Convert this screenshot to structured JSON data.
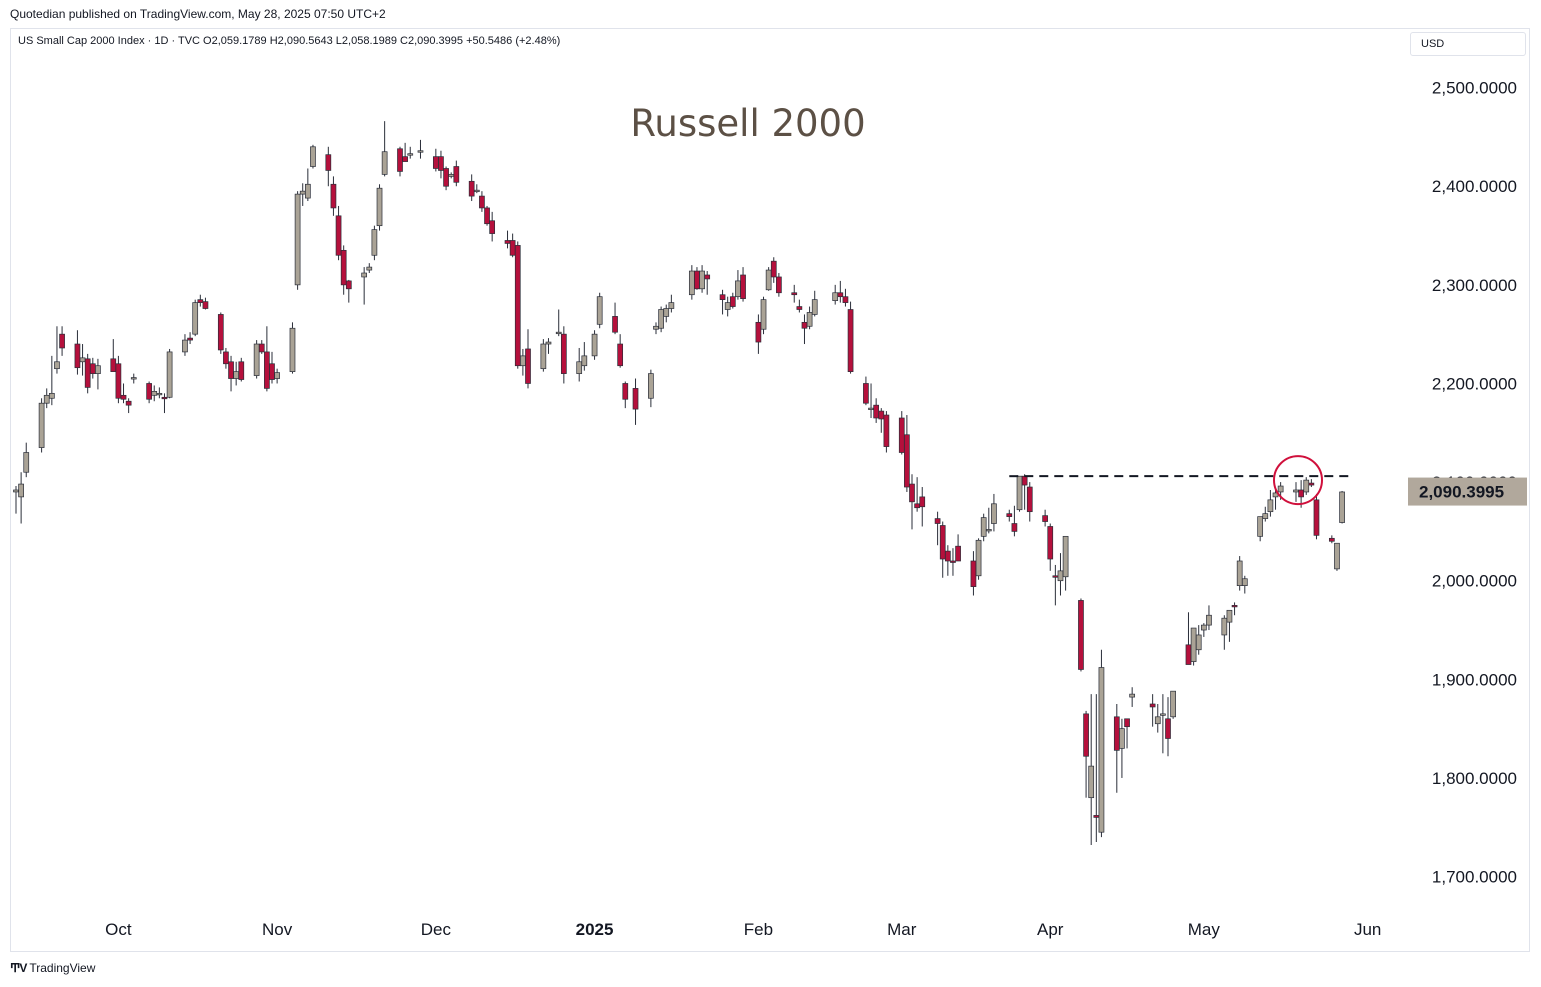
{
  "header": {
    "publisher_line": "Quotedian published on TradingView.com, May 28, 2025 07:50 UTC+2"
  },
  "legend": {
    "symbol": "US Small Cap 2000 Index · 1D · TVC",
    "open": "O2,059.1789",
    "high": "H2,090.5643",
    "low": "L2,058.1989",
    "close": "C2,090.3995",
    "change": "+50.5486 (+2.48%)"
  },
  "currency_label": "USD",
  "chart_title": "Russell 2000",
  "last_price_label": "2,090.3995",
  "colors": {
    "up_candle": "#aaa396",
    "down_candle": "#b5103c",
    "wick": "#2a2e39",
    "title": "#5c5045",
    "circle": "#d0103c",
    "price_tag_bg": "#b1a89c"
  },
  "footer": {
    "brand": "TradingView",
    "logo": "tradingview-logo"
  },
  "chart_data": {
    "type": "candlestick",
    "title": "Russell 2000",
    "ylim": [
      1658,
      2528
    ],
    "y_ticks": [
      {
        "value": 2500,
        "label": "2,500.0000"
      },
      {
        "value": 2400,
        "label": "2,400.0000"
      },
      {
        "value": 2300,
        "label": "2,300.0000"
      },
      {
        "value": 2200,
        "label": "2,200.0000"
      },
      {
        "value": 2100,
        "label": "2,100.0000"
      },
      {
        "value": 2000,
        "label": "2,000.0000"
      },
      {
        "value": 1900,
        "label": "1,900.0000"
      },
      {
        "value": 1800,
        "label": "1,800.0000"
      },
      {
        "value": 1700,
        "label": "1,700.0000"
      }
    ],
    "x_ticks": [
      {
        "date": "2024-10-01",
        "label": "Oct",
        "bold": false
      },
      {
        "date": "2024-11-01",
        "label": "Nov",
        "bold": false
      },
      {
        "date": "2024-12-02",
        "label": "Dec",
        "bold": false
      },
      {
        "date": "2025-01-02",
        "label": "2025",
        "bold": true
      },
      {
        "date": "2025-02-03",
        "label": "Feb",
        "bold": false
      },
      {
        "date": "2025-03-03",
        "label": "Mar",
        "bold": false
      },
      {
        "date": "2025-04-01",
        "label": "Apr",
        "bold": false
      },
      {
        "date": "2025-05-01",
        "label": "May",
        "bold": false
      },
      {
        "date": "2025-06-02",
        "label": "Jun",
        "bold": false
      }
    ],
    "resistance_level": 2106,
    "resistance_start": "2025-03-24",
    "resistance_end": "2025-05-27",
    "highlight": {
      "date": "2025-05-19",
      "price": 2100
    },
    "last_price": 2090.3995,
    "candles": [
      [
        "2024-09-11",
        2090,
        2096,
        2068,
        2092
      ],
      [
        "2024-09-12",
        2085,
        2110,
        2058,
        2098
      ],
      [
        "2024-09-13",
        2110,
        2140,
        2105,
        2130
      ],
      [
        "2024-09-16",
        2135,
        2185,
        2130,
        2180
      ],
      [
        "2024-09-17",
        2180,
        2195,
        2175,
        2188
      ],
      [
        "2024-09-18",
        2185,
        2228,
        2178,
        2190
      ],
      [
        "2024-09-19",
        2215,
        2258,
        2210,
        2222
      ],
      [
        "2024-09-20",
        2250,
        2258,
        2228,
        2236
      ],
      [
        "2024-09-23",
        2240,
        2254,
        2209,
        2216
      ],
      [
        "2024-09-24",
        2222,
        2240,
        2208,
        2226
      ],
      [
        "2024-09-25",
        2225,
        2230,
        2190,
        2196
      ],
      [
        "2024-09-26",
        2220,
        2226,
        2205,
        2210
      ],
      [
        "2024-09-27",
        2210,
        2225,
        2194,
        2218
      ],
      [
        "2024-09-30",
        2225,
        2245,
        2212,
        2212
      ],
      [
        "2024-10-01",
        2220,
        2228,
        2180,
        2185
      ],
      [
        "2024-10-02",
        2188,
        2200,
        2180,
        2184
      ],
      [
        "2024-10-03",
        2182,
        2185,
        2170,
        2178
      ],
      [
        "2024-10-04",
        2205,
        2210,
        2200,
        2206
      ],
      [
        "2024-10-07",
        2200,
        2202,
        2180,
        2184
      ],
      [
        "2024-10-08",
        2188,
        2198,
        2182,
        2192
      ],
      [
        "2024-10-09",
        2190,
        2196,
        2185,
        2190
      ],
      [
        "2024-10-10",
        2186,
        2190,
        2170,
        2185
      ],
      [
        "2024-10-11",
        2186,
        2235,
        2185,
        2232
      ],
      [
        "2024-10-14",
        2232,
        2250,
        2228,
        2244
      ],
      [
        "2024-10-15",
        2246,
        2252,
        2240,
        2244
      ],
      [
        "2024-10-16",
        2250,
        2285,
        2248,
        2282
      ],
      [
        "2024-10-17",
        2285,
        2290,
        2278,
        2282
      ],
      [
        "2024-10-18",
        2283,
        2287,
        2275,
        2276
      ],
      [
        "2024-10-21",
        2270,
        2272,
        2230,
        2234
      ],
      [
        "2024-10-22",
        2232,
        2236,
        2215,
        2220
      ],
      [
        "2024-10-23",
        2222,
        2228,
        2192,
        2205
      ],
      [
        "2024-10-24",
        2205,
        2222,
        2198,
        2212
      ],
      [
        "2024-10-25",
        2222,
        2226,
        2202,
        2204
      ],
      [
        "2024-10-28",
        2208,
        2244,
        2205,
        2240
      ],
      [
        "2024-10-29",
        2240,
        2244,
        2230,
        2232
      ],
      [
        "2024-10-30",
        2232,
        2258,
        2192,
        2195
      ],
      [
        "2024-10-31",
        2220,
        2232,
        2200,
        2204
      ],
      [
        "2024-11-01",
        2205,
        2215,
        2200,
        2211
      ],
      [
        "2024-11-04",
        2212,
        2262,
        2210,
        2256
      ],
      [
        "2024-11-05",
        2300,
        2395,
        2295,
        2392
      ],
      [
        "2024-11-06",
        2392,
        2403,
        2380,
        2395
      ],
      [
        "2024-11-07",
        2388,
        2418,
        2385,
        2402
      ],
      [
        "2024-11-08",
        2420,
        2442,
        2418,
        2440
      ],
      [
        "2024-11-11",
        2432,
        2440,
        2400,
        2416
      ],
      [
        "2024-11-12",
        2402,
        2410,
        2370,
        2378
      ],
      [
        "2024-11-13",
        2370,
        2380,
        2325,
        2330
      ],
      [
        "2024-11-14",
        2335,
        2340,
        2290,
        2300
      ],
      [
        "2024-11-15",
        2304,
        2305,
        2282,
        2296
      ],
      [
        "2024-11-18",
        2308,
        2318,
        2280,
        2312
      ],
      [
        "2024-11-19",
        2315,
        2322,
        2312,
        2318
      ],
      [
        "2024-11-20",
        2330,
        2360,
        2325,
        2356
      ],
      [
        "2024-11-21",
        2360,
        2402,
        2355,
        2398
      ],
      [
        "2024-11-22",
        2412,
        2466,
        2410,
        2435
      ],
      [
        "2024-11-25",
        2438,
        2440,
        2410,
        2415
      ],
      [
        "2024-11-26",
        2430,
        2444,
        2425,
        2425
      ],
      [
        "2024-11-27",
        2432,
        2440,
        2428,
        2433
      ],
      [
        "2024-11-29",
        2436,
        2447,
        2428,
        2436
      ],
      [
        "2024-12-02",
        2430,
        2438,
        2415,
        2418
      ],
      [
        "2024-12-03",
        2430,
        2436,
        2408,
        2416
      ],
      [
        "2024-12-04",
        2418,
        2420,
        2396,
        2400
      ],
      [
        "2024-12-05",
        2410,
        2414,
        2408,
        2412
      ],
      [
        "2024-12-06",
        2420,
        2426,
        2400,
        2404
      ],
      [
        "2024-12-09",
        2405,
        2412,
        2385,
        2390
      ],
      [
        "2024-12-10",
        2396,
        2402,
        2393,
        2396
      ],
      [
        "2024-12-11",
        2390,
        2395,
        2374,
        2378
      ],
      [
        "2024-12-12",
        2378,
        2380,
        2360,
        2362
      ],
      [
        "2024-12-13",
        2365,
        2374,
        2344,
        2352
      ],
      [
        "2024-12-16",
        2345,
        2355,
        2337,
        2342
      ],
      [
        "2024-12-17",
        2345,
        2352,
        2328,
        2330
      ],
      [
        "2024-12-18",
        2340,
        2344,
        2215,
        2218
      ],
      [
        "2024-12-19",
        2218,
        2235,
        2208,
        2228
      ],
      [
        "2024-12-20",
        2235,
        2255,
        2195,
        2200
      ],
      [
        "2024-12-23",
        2215,
        2245,
        2212,
        2240
      ],
      [
        "2024-12-24",
        2240,
        2246,
        2230,
        2242
      ],
      [
        "2024-12-26",
        2252,
        2275,
        2248,
        2252
      ],
      [
        "2024-12-27",
        2250,
        2258,
        2200,
        2210
      ],
      [
        "2024-12-30",
        2210,
        2236,
        2202,
        2222
      ],
      [
        "2024-12-31",
        2218,
        2242,
        2213,
        2228
      ],
      [
        "2025-01-02",
        2228,
        2254,
        2224,
        2250
      ],
      [
        "2025-01-03",
        2260,
        2292,
        2256,
        2288
      ],
      [
        "2025-01-06",
        2268,
        2282,
        2250,
        2252
      ],
      [
        "2025-01-07",
        2240,
        2250,
        2216,
        2218
      ],
      [
        "2025-01-08",
        2200,
        2202,
        2175,
        2184
      ],
      [
        "2025-01-10",
        2195,
        2205,
        2158,
        2174
      ],
      [
        "2025-01-13",
        2185,
        2214,
        2176,
        2210
      ],
      [
        "2025-01-14",
        2255,
        2262,
        2250,
        2258
      ],
      [
        "2025-01-15",
        2256,
        2278,
        2252,
        2275
      ],
      [
        "2025-01-16",
        2268,
        2280,
        2262,
        2276
      ],
      [
        "2025-01-17",
        2276,
        2290,
        2272,
        2282
      ],
      [
        "2025-01-21",
        2290,
        2320,
        2285,
        2314
      ],
      [
        "2025-01-22",
        2314,
        2318,
        2295,
        2296
      ],
      [
        "2025-01-23",
        2296,
        2320,
        2292,
        2314
      ],
      [
        "2025-01-24",
        2310,
        2314,
        2290,
        2306
      ],
      [
        "2025-01-27",
        2290,
        2295,
        2270,
        2285
      ],
      [
        "2025-01-28",
        2275,
        2288,
        2268,
        2282
      ],
      [
        "2025-01-29",
        2288,
        2292,
        2276,
        2278
      ],
      [
        "2025-01-30",
        2288,
        2315,
        2285,
        2304
      ],
      [
        "2025-01-31",
        2310,
        2318,
        2283,
        2286
      ],
      [
        "2025-02-03",
        2262,
        2270,
        2230,
        2242
      ],
      [
        "2025-02-04",
        2255,
        2288,
        2250,
        2285
      ],
      [
        "2025-02-05",
        2295,
        2318,
        2294,
        2315
      ],
      [
        "2025-02-06",
        2324,
        2328,
        2302,
        2308
      ],
      [
        "2025-02-07",
        2308,
        2312,
        2288,
        2292
      ],
      [
        "2025-02-10",
        2292,
        2300,
        2282,
        2290
      ],
      [
        "2025-02-11",
        2278,
        2285,
        2272,
        2275
      ],
      [
        "2025-02-12",
        2262,
        2270,
        2240,
        2256
      ],
      [
        "2025-02-13",
        2258,
        2278,
        2255,
        2272
      ],
      [
        "2025-02-14",
        2270,
        2294,
        2268,
        2285
      ],
      [
        "2025-02-18",
        2284,
        2300,
        2280,
        2292
      ],
      [
        "2025-02-19",
        2292,
        2304,
        2282,
        2288
      ],
      [
        "2025-02-20",
        2288,
        2296,
        2278,
        2282
      ],
      [
        "2025-02-21",
        2275,
        2283,
        2210,
        2212
      ],
      [
        "2025-02-24",
        2200,
        2207,
        2178,
        2180
      ],
      [
        "2025-02-25",
        2175,
        2200,
        2165,
        2175
      ],
      [
        "2025-02-26",
        2178,
        2185,
        2160,
        2165
      ],
      [
        "2025-02-27",
        2172,
        2175,
        2150,
        2164
      ],
      [
        "2025-02-28",
        2168,
        2172,
        2130,
        2136
      ],
      [
        "2025-03-03",
        2165,
        2172,
        2128,
        2130
      ],
      [
        "2025-03-04",
        2148,
        2168,
        2090,
        2095
      ],
      [
        "2025-03-05",
        2098,
        2108,
        2052,
        2080
      ],
      [
        "2025-03-06",
        2078,
        2105,
        2070,
        2074
      ],
      [
        "2025-03-07",
        2085,
        2095,
        2055,
        2075
      ],
      [
        "2025-03-10",
        2063,
        2070,
        2036,
        2058
      ],
      [
        "2025-03-11",
        2056,
        2060,
        2003,
        2022
      ],
      [
        "2025-03-12",
        2030,
        2036,
        2005,
        2020
      ],
      [
        "2025-03-13",
        2020,
        2033,
        2005,
        2019
      ],
      [
        "2025-03-14",
        2035,
        2047,
        2026,
        2020
      ],
      [
        "2025-03-17",
        2020,
        2030,
        1985,
        1994
      ],
      [
        "2025-03-18",
        2005,
        2043,
        2001,
        2041
      ],
      [
        "2025-03-19",
        2045,
        2068,
        2040,
        2064
      ],
      [
        "2025-03-20",
        2052,
        2074,
        2048,
        2052
      ],
      [
        "2025-03-21",
        2058,
        2088,
        2050,
        2078
      ],
      [
        "2025-03-24",
        2068,
        2072,
        2060,
        2065
      ],
      [
        "2025-03-25",
        2058,
        2076,
        2045,
        2050
      ],
      [
        "2025-03-26",
        2072,
        2106,
        2070,
        2106
      ],
      [
        "2025-03-27",
        2106,
        2108,
        2072,
        2097
      ],
      [
        "2025-03-28",
        2095,
        2100,
        2060,
        2070
      ],
      [
        "2025-03-31",
        2066,
        2072,
        2055,
        2060
      ],
      [
        "2025-04-01",
        2055,
        2058,
        2010,
        2022
      ],
      [
        "2025-04-02",
        2005,
        2016,
        1975,
        2004
      ],
      [
        "2025-04-03",
        2000,
        2028,
        1985,
        2010
      ],
      [
        "2025-04-04",
        2004,
        2045,
        1990,
        2045
      ],
      [
        "2025-04-07",
        1980,
        1982,
        1908,
        1910
      ],
      [
        "2025-04-08",
        1865,
        1868,
        1780,
        1822
      ],
      [
        "2025-04-09",
        1780,
        1885,
        1732,
        1812
      ],
      [
        "2025-04-10",
        1762,
        1885,
        1735,
        1760
      ],
      [
        "2025-04-11",
        1745,
        1930,
        1740,
        1912
      ],
      [
        "2025-04-14",
        1862,
        1875,
        1785,
        1828
      ],
      [
        "2025-04-15",
        1830,
        1860,
        1800,
        1850
      ],
      [
        "2025-04-16",
        1860,
        1860,
        1830,
        1852
      ],
      [
        "2025-04-17",
        1882,
        1892,
        1872,
        1885
      ],
      [
        "2025-04-21",
        1875,
        1885,
        1852,
        1872
      ],
      [
        "2025-04-22",
        1855,
        1875,
        1846,
        1862
      ],
      [
        "2025-04-23",
        1865,
        1885,
        1825,
        1865
      ],
      [
        "2025-04-24",
        1860,
        1882,
        1822,
        1840
      ],
      [
        "2025-04-25",
        1862,
        1888,
        1860,
        1888
      ],
      [
        "2025-04-28",
        1935,
        1968,
        1920,
        1915
      ],
      [
        "2025-04-29",
        1918,
        1948,
        1914,
        1952
      ],
      [
        "2025-04-30",
        1930,
        1955,
        1925,
        1945
      ],
      [
        "2025-05-01",
        1950,
        1957,
        1943,
        1955
      ],
      [
        "2025-05-02",
        1955,
        1975,
        1950,
        1965
      ],
      [
        "2025-05-05",
        1945,
        1965,
        1930,
        1962
      ],
      [
        "2025-05-06",
        1958,
        1970,
        1938,
        1970
      ],
      [
        "2025-05-07",
        1975,
        1978,
        1965,
        1974
      ],
      [
        "2025-05-08",
        1995,
        2025,
        1990,
        2020
      ],
      [
        "2025-05-09",
        1995,
        2005,
        1987,
        2002
      ],
      [
        "2025-05-12",
        2045,
        2065,
        2040,
        2065
      ],
      [
        "2025-05-13",
        2063,
        2075,
        2060,
        2068
      ],
      [
        "2025-05-14",
        2070,
        2092,
        2065,
        2082
      ],
      [
        "2025-05-15",
        2085,
        2094,
        2072,
        2089
      ],
      [
        "2025-05-16",
        2090,
        2100,
        2082,
        2096
      ],
      [
        "2025-05-19",
        2090,
        2100,
        2080,
        2092
      ],
      [
        "2025-05-20",
        2092,
        2102,
        2074,
        2085
      ],
      [
        "2025-05-21",
        2090,
        2105,
        2087,
        2102
      ],
      [
        "2025-05-22",
        2099,
        2103,
        2095,
        2097
      ],
      [
        "2025-05-23",
        2082,
        2088,
        2042,
        2046
      ],
      [
        "2025-05-26",
        2043,
        2046,
        2038,
        2040
      ],
      [
        "2025-05-27",
        2012,
        2038,
        2010,
        2038
      ],
      [
        "2025-05-28",
        2059,
        2091,
        2058,
        2090
      ]
    ]
  }
}
